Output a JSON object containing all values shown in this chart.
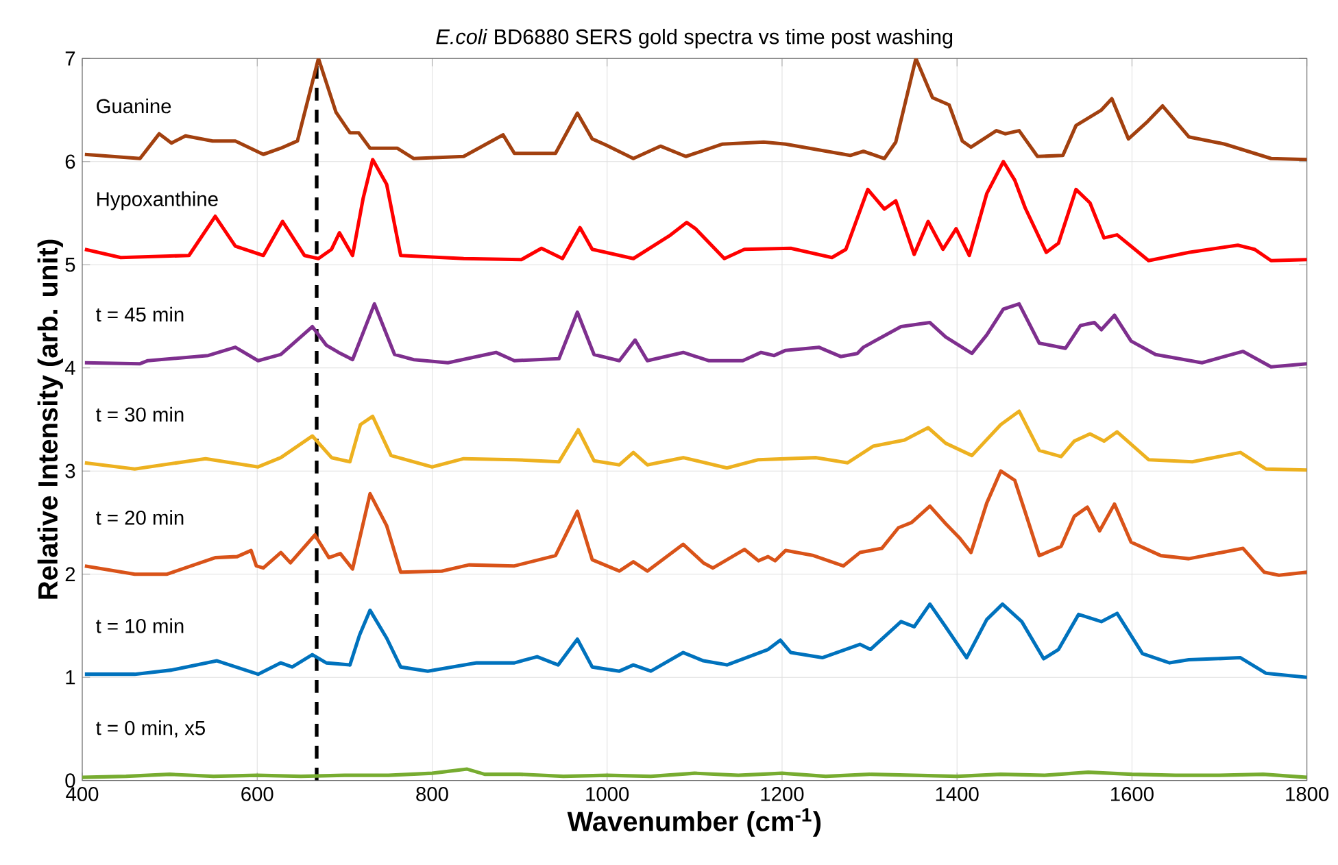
{
  "chart_data": {
    "type": "line",
    "title": "*E.coli* BD6880 SERS gold spectra vs time post washing",
    "xlabel": "Wavenumber (cm$^{-1}$)",
    "ylabel": "Relative Intensity (arb. unit)",
    "xlim": [
      400,
      1800
    ],
    "ylim": [
      0,
      7
    ],
    "xticks": [
      400,
      600,
      800,
      1000,
      1200,
      1400,
      1600,
      1800
    ],
    "yticks": [
      0,
      1,
      2,
      3,
      4,
      5,
      6,
      7
    ],
    "grid": true,
    "line_style": "solid",
    "ref_lines": [
      {
        "axis": "x",
        "value": 668,
        "color": "#000000",
        "line_style": "dashed"
      }
    ],
    "series": [
      {
        "name": "Guanine",
        "color": "#a2400f",
        "x": [
          403,
          466,
          488,
          502,
          518,
          549,
          575,
          607,
          627,
          646,
          670,
          690,
          706,
          716,
          729,
          760,
          779,
          836,
          881,
          894,
          941,
          966,
          983,
          999,
          1030,
          1061,
          1090,
          1132,
          1179,
          1204,
          1231,
          1278,
          1293,
          1317,
          1330,
          1353,
          1372,
          1391,
          1406,
          1416,
          1445,
          1455,
          1471,
          1492,
          1521,
          1536,
          1565,
          1577,
          1596,
          1618,
          1635,
          1665,
          1706,
          1759,
          1800
        ],
        "values": [
          6.07,
          6.03,
          6.27,
          6.18,
          6.25,
          6.2,
          6.2,
          6.07,
          6.13,
          6.2,
          7.0,
          6.48,
          6.28,
          6.28,
          6.13,
          6.13,
          6.03,
          6.05,
          6.26,
          6.08,
          6.08,
          6.47,
          6.22,
          6.16,
          6.03,
          6.15,
          6.05,
          6.17,
          6.19,
          6.17,
          6.13,
          6.06,
          6.1,
          6.03,
          6.19,
          7.0,
          6.62,
          6.55,
          6.2,
          6.14,
          6.3,
          6.27,
          6.3,
          6.05,
          6.06,
          6.35,
          6.5,
          6.61,
          6.22,
          6.39,
          6.54,
          6.24,
          6.17,
          6.03,
          6.02
        ]
      },
      {
        "name": "Hypoxanthine",
        "color": "#ff0000",
        "x": [
          403,
          444,
          522,
          552,
          575,
          607,
          629,
          654,
          670,
          685,
          694,
          709,
          721,
          732,
          748,
          764,
          836,
          902,
          925,
          949,
          969,
          983,
          1030,
          1071,
          1091,
          1101,
          1134,
          1157,
          1210,
          1257,
          1273,
          1298,
          1317,
          1330,
          1351,
          1367,
          1384,
          1399,
          1414,
          1434,
          1453,
          1466,
          1478,
          1502,
          1516,
          1536,
          1552,
          1568,
          1583,
          1599,
          1619,
          1665,
          1721,
          1740,
          1759,
          1800
        ],
        "values": [
          5.15,
          5.07,
          5.09,
          5.47,
          5.18,
          5.09,
          5.42,
          5.09,
          5.06,
          5.15,
          5.31,
          5.09,
          5.64,
          6.02,
          5.78,
          5.09,
          5.06,
          5.05,
          5.16,
          5.06,
          5.36,
          5.15,
          5.06,
          5.28,
          5.41,
          5.35,
          5.06,
          5.15,
          5.16,
          5.07,
          5.15,
          5.73,
          5.54,
          5.62,
          5.1,
          5.42,
          5.15,
          5.35,
          5.09,
          5.69,
          6.0,
          5.82,
          5.55,
          5.12,
          5.21,
          5.73,
          5.6,
          5.26,
          5.29,
          5.18,
          5.04,
          5.12,
          5.19,
          5.15,
          5.04,
          5.05
        ]
      },
      {
        "name": "t = 45 min",
        "color": "#7e2f8e",
        "x": [
          403,
          466,
          475,
          544,
          575,
          601,
          627,
          663,
          679,
          693,
          709,
          734,
          757,
          779,
          818,
          873,
          894,
          945,
          966,
          985,
          1014,
          1032,
          1046,
          1087,
          1116,
          1155,
          1176,
          1191,
          1204,
          1242,
          1267,
          1286,
          1293,
          1336,
          1369,
          1387,
          1417,
          1434,
          1453,
          1471,
          1494,
          1524,
          1541,
          1557,
          1565,
          1580,
          1599,
          1627,
          1680,
          1727,
          1759,
          1800
        ],
        "values": [
          4.05,
          4.04,
          4.07,
          4.12,
          4.2,
          4.07,
          4.13,
          4.4,
          4.22,
          4.15,
          4.08,
          4.62,
          4.13,
          4.08,
          4.05,
          4.15,
          4.07,
          4.09,
          4.54,
          4.13,
          4.07,
          4.27,
          4.07,
          4.15,
          4.07,
          4.07,
          4.15,
          4.12,
          4.17,
          4.2,
          4.11,
          4.14,
          4.2,
          4.4,
          4.44,
          4.3,
          4.14,
          4.32,
          4.57,
          4.62,
          4.24,
          4.19,
          4.41,
          4.44,
          4.37,
          4.51,
          4.26,
          4.13,
          4.05,
          4.16,
          4.01,
          4.04
        ]
      },
      {
        "name": "t = 30 min",
        "color": "#edb120",
        "x": [
          403,
          460,
          541,
          601,
          627,
          663,
          685,
          706,
          718,
          732,
          753,
          800,
          836,
          894,
          945,
          967,
          985,
          1014,
          1030,
          1046,
          1087,
          1137,
          1173,
          1239,
          1275,
          1304,
          1340,
          1367,
          1387,
          1417,
          1450,
          1471,
          1494,
          1519,
          1534,
          1552,
          1568,
          1583,
          1619,
          1669,
          1724,
          1753,
          1800
        ],
        "values": [
          3.08,
          3.02,
          3.12,
          3.04,
          3.13,
          3.34,
          3.13,
          3.09,
          3.45,
          3.53,
          3.15,
          3.04,
          3.12,
          3.11,
          3.09,
          3.4,
          3.1,
          3.06,
          3.18,
          3.06,
          3.13,
          3.03,
          3.11,
          3.13,
          3.08,
          3.24,
          3.3,
          3.42,
          3.27,
          3.15,
          3.45,
          3.58,
          3.2,
          3.14,
          3.29,
          3.36,
          3.29,
          3.38,
          3.11,
          3.09,
          3.18,
          3.02,
          3.01
        ]
      },
      {
        "name": "t = 20 min",
        "color": "#d95319",
        "x": [
          403,
          460,
          497,
          552,
          577,
          593,
          599,
          607,
          627,
          638,
          666,
          682,
          695,
          709,
          729,
          748,
          764,
          811,
          842,
          894,
          941,
          966,
          983,
          1014,
          1030,
          1046,
          1087,
          1110,
          1121,
          1157,
          1173,
          1184,
          1192,
          1204,
          1236,
          1270,
          1289,
          1314,
          1333,
          1348,
          1369,
          1387,
          1403,
          1416,
          1434,
          1450,
          1466,
          1478,
          1494,
          1519,
          1534,
          1549,
          1563,
          1580,
          1599,
          1633,
          1665,
          1727,
          1751,
          1768,
          1800
        ],
        "values": [
          2.08,
          2.0,
          2.0,
          2.16,
          2.17,
          2.23,
          2.08,
          2.06,
          2.21,
          2.11,
          2.38,
          2.16,
          2.2,
          2.05,
          2.78,
          2.47,
          2.02,
          2.03,
          2.09,
          2.08,
          2.18,
          2.61,
          2.14,
          2.03,
          2.12,
          2.03,
          2.29,
          2.11,
          2.06,
          2.24,
          2.13,
          2.17,
          2.13,
          2.23,
          2.18,
          2.08,
          2.21,
          2.25,
          2.45,
          2.5,
          2.66,
          2.49,
          2.35,
          2.21,
          2.69,
          3.0,
          2.91,
          2.6,
          2.18,
          2.27,
          2.56,
          2.65,
          2.42,
          2.68,
          2.31,
          2.18,
          2.15,
          2.25,
          2.02,
          1.99,
          2.02
        ]
      },
      {
        "name": "t = 10 min",
        "color": "#0072bd",
        "x": [
          403,
          460,
          502,
          554,
          601,
          627,
          640,
          663,
          679,
          706,
          717,
          729,
          748,
          764,
          795,
          851,
          894,
          920,
          944,
          966,
          983,
          1014,
          1030,
          1050,
          1087,
          1110,
          1137,
          1184,
          1198,
          1210,
          1246,
          1289,
          1301,
          1336,
          1351,
          1369,
          1387,
          1411,
          1434,
          1452,
          1474,
          1499,
          1516,
          1539,
          1565,
          1583,
          1612,
          1643,
          1665,
          1724,
          1753,
          1800
        ],
        "values": [
          1.03,
          1.03,
          1.07,
          1.16,
          1.03,
          1.14,
          1.1,
          1.22,
          1.14,
          1.12,
          1.41,
          1.65,
          1.38,
          1.1,
          1.06,
          1.14,
          1.14,
          1.2,
          1.12,
          1.37,
          1.1,
          1.06,
          1.12,
          1.06,
          1.24,
          1.16,
          1.12,
          1.27,
          1.36,
          1.24,
          1.19,
          1.32,
          1.27,
          1.54,
          1.49,
          1.71,
          1.49,
          1.19,
          1.56,
          1.71,
          1.54,
          1.18,
          1.27,
          1.61,
          1.54,
          1.62,
          1.23,
          1.14,
          1.17,
          1.19,
          1.04,
          1.0
        ]
      },
      {
        "name": "t = 0 min, x5",
        "color": "#77ac30",
        "x": [
          400,
          450,
          500,
          550,
          600,
          650,
          700,
          750,
          800,
          840,
          860,
          900,
          950,
          1000,
          1050,
          1100,
          1150,
          1200,
          1250,
          1300,
          1350,
          1400,
          1450,
          1500,
          1550,
          1600,
          1650,
          1700,
          1750,
          1800
        ],
        "values": [
          0.03,
          0.04,
          0.06,
          0.04,
          0.05,
          0.04,
          0.05,
          0.05,
          0.07,
          0.11,
          0.06,
          0.06,
          0.04,
          0.05,
          0.04,
          0.07,
          0.05,
          0.07,
          0.04,
          0.06,
          0.05,
          0.04,
          0.06,
          0.05,
          0.08,
          0.06,
          0.05,
          0.05,
          0.06,
          0.03
        ]
      }
    ]
  }
}
